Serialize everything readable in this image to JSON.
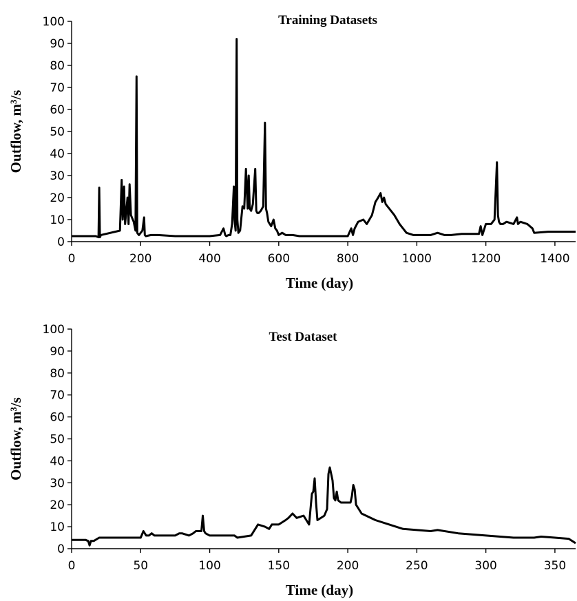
{
  "chart_data": [
    {
      "type": "line",
      "title": "Training Datasets",
      "xlabel": "Time (day)",
      "ylabel": "Outflow, m³/s",
      "xlim": [
        0,
        1460
      ],
      "ylim": [
        0,
        100
      ],
      "xticks": [
        0,
        200,
        400,
        600,
        800,
        1000,
        1200,
        1400
      ],
      "yticks": [
        0,
        10,
        20,
        30,
        40,
        50,
        60,
        70,
        80,
        90,
        100
      ],
      "grid": false,
      "series": [
        {
          "x": [
            0,
            70,
            78,
            80,
            82,
            85,
            140,
            145,
            148,
            152,
            155,
            158,
            162,
            165,
            168,
            172,
            180,
            185,
            188,
            190,
            195,
            205,
            210,
            212,
            215,
            230,
            240,
            250,
            300,
            350,
            400,
            430,
            440,
            445,
            448,
            455,
            460,
            465,
            470,
            472,
            475,
            478,
            480,
            483,
            488,
            495,
            500,
            505,
            510,
            513,
            516,
            520,
            525,
            532,
            535,
            538,
            542,
            548,
            555,
            560,
            563,
            566,
            570,
            578,
            585,
            590,
            595,
            600,
            610,
            620,
            640,
            660,
            700,
            750,
            790,
            800,
            810,
            815,
            820,
            830,
            845,
            855,
            870,
            880,
            888,
            895,
            900,
            905,
            910,
            920,
            935,
            950,
            970,
            990,
            1010,
            1040,
            1060,
            1080,
            1100,
            1130,
            1160,
            1180,
            1185,
            1190,
            1200,
            1215,
            1225,
            1232,
            1235,
            1238,
            1242,
            1250,
            1260,
            1280,
            1290,
            1293,
            1300,
            1320,
            1335,
            1340,
            1380,
            1460
          ],
          "y": [
            2.5,
            2.5,
            2,
            24.5,
            2,
            3,
            5,
            28,
            10,
            25,
            8,
            13,
            20,
            8,
            26,
            12,
            9,
            5,
            75,
            4,
            3,
            5,
            11,
            3,
            2.5,
            3,
            3,
            3,
            2.5,
            2.5,
            2.5,
            3,
            6,
            3,
            2.5,
            3,
            3,
            8,
            25,
            10,
            5,
            92,
            10,
            4,
            5,
            16,
            15,
            33,
            15,
            30,
            15,
            14,
            17,
            33,
            14,
            13,
            13,
            14,
            16,
            54,
            15,
            13,
            9,
            7,
            10,
            6,
            5,
            3,
            4,
            3,
            3,
            2.5,
            2.5,
            2.5,
            2.5,
            2.5,
            6,
            3,
            6,
            9,
            10,
            8,
            12,
            18,
            20,
            22,
            18,
            20,
            17,
            15,
            12,
            8,
            4,
            3,
            3,
            3,
            4,
            3,
            3,
            3.5,
            3.5,
            3.5,
            7,
            3,
            8,
            8,
            10,
            36,
            12,
            9,
            8,
            8,
            9,
            8,
            11,
            8,
            9,
            8,
            6,
            4,
            4.5,
            4.5
          ]
        }
      ]
    },
    {
      "type": "line",
      "title": "Test Dataset",
      "xlabel": "Time (day)",
      "ylabel": "Outflow, m³/s",
      "xlim": [
        0,
        365
      ],
      "ylim": [
        0,
        100
      ],
      "xticks": [
        0,
        50,
        100,
        150,
        200,
        250,
        300,
        350
      ],
      "yticks": [
        0,
        10,
        20,
        30,
        40,
        50,
        60,
        70,
        80,
        90,
        100
      ],
      "grid": false,
      "series": [
        {
          "x": [
            0,
            10,
            12,
            13,
            14,
            16,
            20,
            50,
            52,
            54,
            56,
            58,
            60,
            62,
            75,
            78,
            80,
            85,
            88,
            90,
            94,
            95,
            96,
            97,
            100,
            118,
            120,
            130,
            133,
            135,
            140,
            143,
            145,
            150,
            155,
            157,
            160,
            163,
            168,
            170,
            172,
            174,
            175,
            176,
            177,
            178,
            183,
            185,
            186,
            187,
            189,
            190,
            191,
            192,
            193,
            195,
            200,
            202,
            203,
            204,
            205,
            206,
            210,
            220,
            240,
            260,
            265,
            280,
            300,
            320,
            335,
            340,
            350,
            360,
            365
          ],
          "y": [
            4,
            4,
            3.5,
            1.5,
            3.5,
            3.5,
            5,
            5,
            8,
            6,
            6,
            7,
            6,
            6,
            6,
            7,
            7,
            6,
            7,
            8,
            8,
            15,
            8,
            7,
            6,
            6,
            5,
            6,
            9,
            11,
            10,
            9,
            11,
            11,
            13,
            14,
            16,
            14,
            15,
            13,
            11,
            25,
            26,
            32,
            21,
            13,
            15,
            18,
            34,
            37,
            31,
            23,
            22,
            26,
            22,
            21,
            21,
            21,
            24,
            29,
            27,
            20,
            16,
            13,
            9,
            8,
            8.5,
            7,
            6,
            5,
            5,
            5.5,
            5,
            4.5,
            2.5
          ]
        }
      ]
    }
  ]
}
